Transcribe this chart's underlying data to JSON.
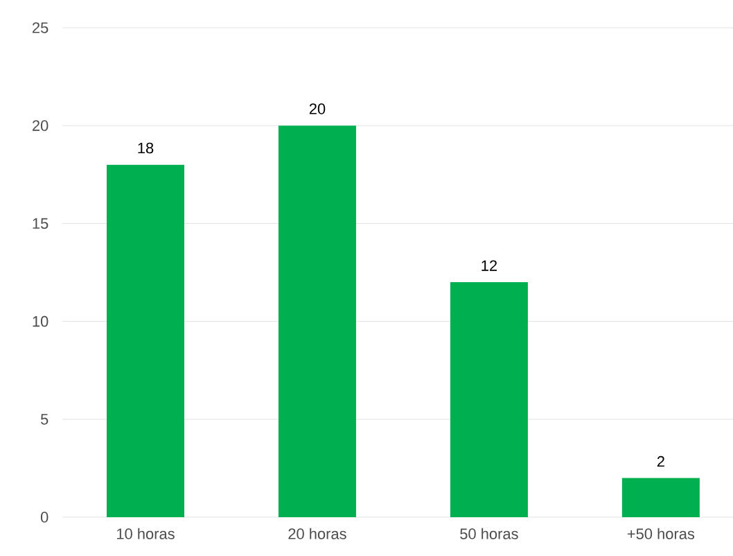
{
  "chart_data": {
    "type": "bar",
    "categories": [
      "10 horas",
      "20 horas",
      "50 horas",
      "+50 horas"
    ],
    "values": [
      18,
      20,
      12,
      2
    ],
    "color": "#00b050",
    "ylim": [
      0,
      25
    ],
    "yticks": [
      0,
      5,
      10,
      15,
      20,
      25
    ],
    "grid": "y",
    "data_labels": true
  }
}
